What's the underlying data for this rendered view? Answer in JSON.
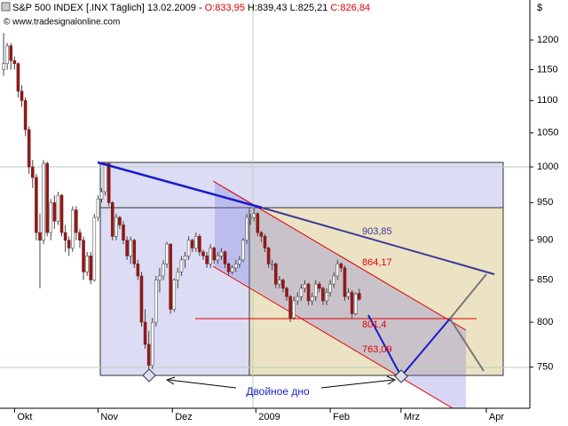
{
  "chart_data": {
    "type": "candlestick",
    "title": "S&P 500 INDEX [.INX  Täglich] 13.02.2009 -",
    "open_label": "O:833,95",
    "high_low_label": "H:839,43 L:825,21",
    "close_label": "C:826,84",
    "source": "© www.tradesignalonline.com",
    "currency": "$",
    "annotations": [
      "903,85",
      "864,17",
      "801,4",
      "763,09",
      "Двойное дно"
    ],
    "log_y": true,
    "ylim": [
      707,
      1271
    ],
    "yticks": [
      750,
      800,
      850,
      900,
      950,
      1000,
      1050,
      1100,
      1150,
      1200
    ],
    "xlim": [
      -4,
      142
    ],
    "xticks": [
      {
        "value": 0,
        "label": "Okt"
      },
      {
        "value": 23,
        "label": "Nov"
      },
      {
        "value": 43.5,
        "label": "Dez"
      },
      {
        "value": 66.5,
        "label": "2009"
      },
      {
        "value": 87,
        "label": "Feb"
      },
      {
        "value": 106.5,
        "label": "Mrz"
      },
      {
        "value": 130,
        "label": "Apr"
      }
    ],
    "up_color": "#ffffff",
    "down_color": "#8b1a1a",
    "x": [
      -3,
      -2,
      -1,
      0,
      1,
      2,
      3,
      4,
      5,
      6,
      7,
      8,
      9,
      10,
      11,
      12,
      13,
      14,
      15,
      16,
      17,
      18,
      19,
      20,
      21,
      22,
      23,
      24,
      25,
      26,
      27,
      28,
      29,
      30,
      31,
      32,
      33,
      34,
      35,
      36,
      37,
      38,
      39,
      40,
      41,
      42,
      43,
      44,
      45,
      46,
      47,
      48,
      49,
      50,
      51,
      52,
      53,
      54,
      55,
      56,
      57,
      58,
      59,
      60,
      61,
      62,
      63,
      64,
      65,
      66,
      67,
      68,
      69,
      70,
      71,
      72,
      73,
      74,
      75,
      76,
      77,
      78,
      79,
      80,
      81,
      82,
      83,
      84,
      85,
      86,
      87,
      88,
      89,
      90,
      91,
      92,
      93,
      94,
      95
    ],
    "ohlc": [
      [
        1150,
        1212,
        1140,
        1160
      ],
      [
        1160,
        1195,
        1150,
        1190
      ],
      [
        1190,
        1195,
        1150,
        1165
      ],
      [
        1165,
        1172,
        1150,
        1160
      ],
      [
        1160,
        1162,
        1105,
        1115
      ],
      [
        1115,
        1125,
        1090,
        1100
      ],
      [
        1100,
        1105,
        1045,
        1055
      ],
      [
        1055,
        1060,
        990,
        1000
      ],
      [
        1000,
        1010,
        970,
        985
      ],
      [
        985,
        990,
        900,
        910
      ],
      [
        910,
        935,
        840,
        900
      ],
      [
        900,
        1010,
        895,
        1005
      ],
      [
        1005,
        1008,
        905,
        910
      ],
      [
        910,
        955,
        900,
        950
      ],
      [
        950,
        960,
        915,
        925
      ],
      [
        925,
        965,
        920,
        960
      ],
      [
        960,
        962,
        905,
        910
      ],
      [
        910,
        920,
        885,
        900
      ],
      [
        900,
        905,
        880,
        890
      ],
      [
        890,
        945,
        885,
        940
      ],
      [
        940,
        945,
        900,
        910
      ],
      [
        910,
        915,
        890,
        900
      ],
      [
        900,
        905,
        850,
        860
      ],
      [
        860,
        885,
        855,
        880
      ],
      [
        880,
        885,
        845,
        850
      ],
      [
        850,
        935,
        848,
        930
      ],
      [
        930,
        960,
        925,
        955
      ],
      [
        955,
        970,
        950,
        965
      ],
      [
        965,
        1007,
        960,
        1005
      ],
      [
        1005,
        1006,
        945,
        950
      ],
      [
        950,
        952,
        900,
        905
      ],
      [
        905,
        935,
        900,
        930
      ],
      [
        930,
        932,
        915,
        920
      ],
      [
        920,
        925,
        895,
        900
      ],
      [
        900,
        905,
        875,
        880
      ],
      [
        880,
        905,
        870,
        900
      ],
      [
        900,
        902,
        865,
        870
      ],
      [
        870,
        875,
        850,
        855
      ],
      [
        855,
        860,
        795,
        800
      ],
      [
        800,
        815,
        770,
        775
      ],
      [
        775,
        790,
        742,
        752
      ],
      [
        752,
        805,
        748,
        800
      ],
      [
        800,
        855,
        795,
        850
      ],
      [
        850,
        865,
        835,
        855
      ],
      [
        855,
        875,
        850,
        870
      ],
      [
        870,
        898,
        865,
        895
      ],
      [
        895,
        896,
        810,
        815
      ],
      [
        815,
        852,
        812,
        850
      ],
      [
        850,
        865,
        840,
        860
      ],
      [
        860,
        880,
        855,
        875
      ],
      [
        875,
        885,
        865,
        880
      ],
      [
        880,
        905,
        875,
        900
      ],
      [
        900,
        902,
        885,
        890
      ],
      [
        890,
        910,
        885,
        905
      ],
      [
        905,
        908,
        880,
        885
      ],
      [
        885,
        888,
        875,
        880
      ],
      [
        880,
        885,
        865,
        870
      ],
      [
        870,
        895,
        865,
        890
      ],
      [
        890,
        892,
        870,
        875
      ],
      [
        875,
        885,
        870,
        880
      ],
      [
        880,
        890,
        875,
        885
      ],
      [
        885,
        887,
        865,
        870
      ],
      [
        870,
        872,
        855,
        860
      ],
      [
        860,
        868,
        857,
        865
      ],
      [
        865,
        875,
        860,
        870
      ],
      [
        870,
        880,
        865,
        875
      ],
      [
        875,
        903,
        872,
        900
      ],
      [
        900,
        935,
        895,
        930
      ],
      [
        930,
        935,
        920,
        930
      ],
      [
        930,
        943,
        925,
        935
      ],
      [
        935,
        937,
        905,
        910
      ],
      [
        910,
        912,
        898,
        905
      ],
      [
        905,
        908,
        885,
        890
      ],
      [
        890,
        892,
        865,
        870
      ],
      [
        870,
        875,
        862,
        870
      ],
      [
        870,
        872,
        840,
        845
      ],
      [
        845,
        855,
        840,
        850
      ],
      [
        850,
        852,
        835,
        840
      ],
      [
        840,
        842,
        825,
        830
      ],
      [
        830,
        832,
        800,
        805
      ],
      [
        805,
        830,
        803,
        825
      ],
      [
        825,
        835,
        820,
        830
      ],
      [
        830,
        845,
        825,
        840
      ],
      [
        840,
        850,
        835,
        845
      ],
      [
        845,
        847,
        820,
        825
      ],
      [
        825,
        835,
        820,
        830
      ],
      [
        830,
        850,
        825,
        845
      ],
      [
        845,
        848,
        835,
        840
      ],
      [
        840,
        842,
        820,
        825
      ],
      [
        825,
        840,
        820,
        835
      ],
      [
        835,
        850,
        830,
        845
      ],
      [
        845,
        860,
        840,
        855
      ],
      [
        855,
        875,
        850,
        870
      ],
      [
        870,
        872,
        860,
        865
      ],
      [
        865,
        868,
        825,
        830
      ],
      [
        830,
        840,
        826,
        835
      ],
      [
        835,
        838,
        805,
        810
      ],
      [
        810,
        835,
        808,
        833
      ],
      [
        833.95,
        839.43,
        825.21,
        826.84
      ]
    ]
  }
}
